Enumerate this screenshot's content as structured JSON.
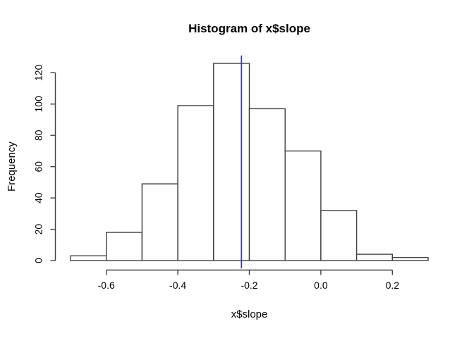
{
  "window": {
    "background": "#ffffff"
  },
  "chart_data": {
    "type": "bar",
    "variant": "histogram",
    "title": "Histogram of x$slope",
    "xlabel": "x$slope",
    "ylabel": "Frequency",
    "bin_edges": [
      -0.7,
      -0.6,
      -0.5,
      -0.4,
      -0.3,
      -0.2,
      -0.1,
      0.0,
      0.1,
      0.2,
      0.3
    ],
    "counts": [
      3,
      18,
      49,
      99,
      126,
      97,
      70,
      32,
      4,
      2
    ],
    "x_ticks": [
      -0.6,
      -0.4,
      -0.2,
      0.0,
      0.2
    ],
    "x_tick_labels": [
      "-0.6",
      "-0.4",
      "-0.2",
      "0.0",
      "0.2"
    ],
    "y_ticks": [
      0,
      20,
      40,
      60,
      80,
      100,
      120
    ],
    "y_tick_labels": [
      "0",
      "20",
      "40",
      "60",
      "80",
      "100",
      "120"
    ],
    "xlim": [
      -0.74,
      0.34
    ],
    "ylim": [
      -5.04,
      131.04
    ],
    "vline": {
      "x": -0.222,
      "color": "#3333ff"
    },
    "colors": {
      "bar_fill": "#ffffff",
      "bar_border": "#404040",
      "axis": "#404040",
      "text": "#000000"
    },
    "grid": false,
    "legend": false
  }
}
